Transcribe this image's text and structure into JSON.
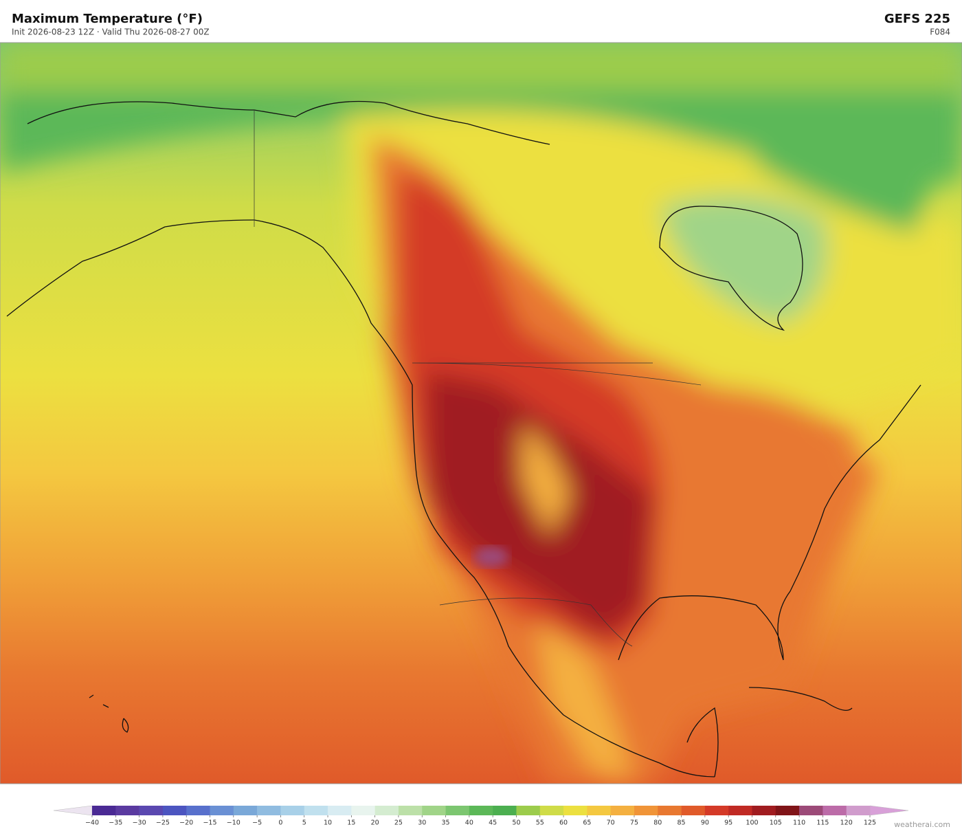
{
  "header": {
    "title": "Maximum Temperature  (°F)",
    "subtitle": "Init 2026-08-23 12Z  ·  Valid Thu 2026-08-27 00Z",
    "model": "GEFS  225",
    "forecast_hour": "F084"
  },
  "colorbar": {
    "ticks": [
      {
        "value": -40,
        "label": "−40"
      },
      {
        "value": -35,
        "label": "−35"
      },
      {
        "value": -30,
        "label": "−30"
      },
      {
        "value": -25,
        "label": "−25"
      },
      {
        "value": -20,
        "label": "−20"
      },
      {
        "value": -15,
        "label": "−15"
      },
      {
        "value": -10,
        "label": "−10"
      },
      {
        "value": -5,
        "label": "−5"
      },
      0,
      5,
      10,
      15,
      20,
      25,
      30,
      35,
      40,
      45,
      50,
      55,
      60,
      65,
      70,
      75,
      80,
      85,
      90,
      95,
      100,
      105,
      110,
      115,
      120,
      125
    ],
    "colors": [
      "#4a2a94",
      "#5a3aa0",
      "#5a48b0",
      "#4c55c0",
      "#5870cc",
      "#6a90d4",
      "#7aa8d8",
      "#90bce0",
      "#a8d0e8",
      "#c0e0ee",
      "#d8ecf2",
      "#e8f4ee",
      "#d4ecd0",
      "#bce0a8",
      "#a0d488",
      "#7cc670",
      "#5cb858",
      "#4caf50",
      "#9ccc4c",
      "#cfdc48",
      "#ece040",
      "#f4c840",
      "#f4b040",
      "#f09438",
      "#e87830",
      "#e05a2a",
      "#d43a28",
      "#c02a24",
      "#a01c20",
      "#801418",
      "#9c4a78",
      "#bc6ca8",
      "#d09ccc"
    ],
    "under_color": "#ece4f0",
    "over_color": "#d8a0d8"
  },
  "watermark": "weatherai.com"
}
